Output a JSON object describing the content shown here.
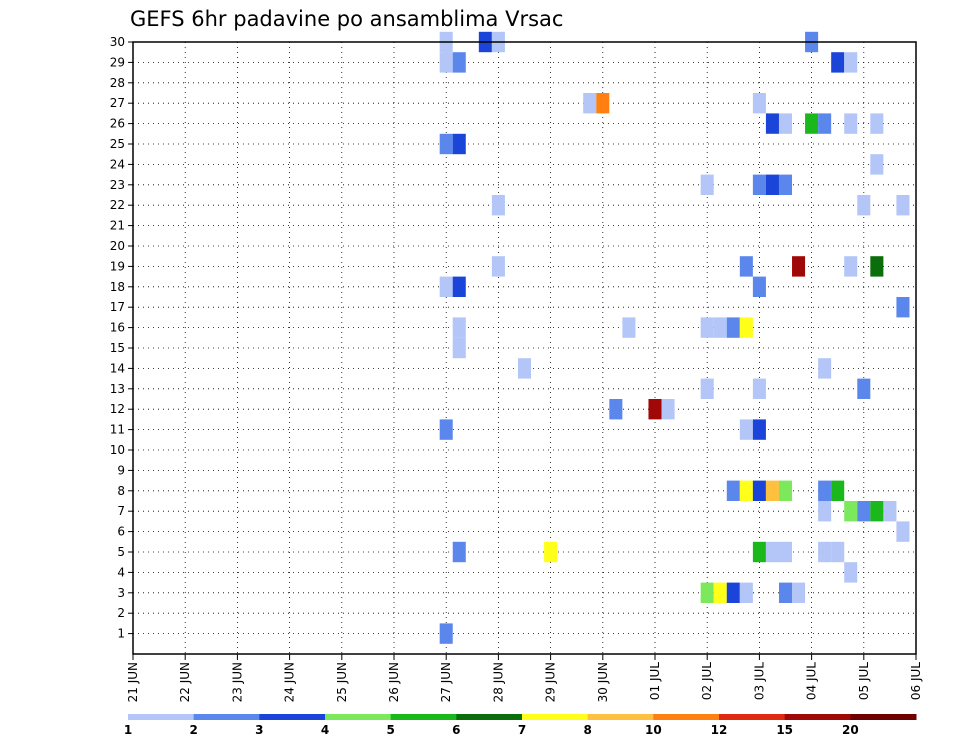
{
  "chart_data": {
    "type": "heatmap",
    "title": "GEFS 6hr padavine po ansamblima Vrsac",
    "xlabel": "",
    "ylabel": "",
    "x_tick_labels": [
      "21 JUN",
      "22 JUN",
      "23 JUN",
      "24 JUN",
      "25 JUN",
      "26 JUN",
      "27 JUN",
      "28 JUN",
      "29 JUN",
      "30 JUN",
      "01 JUL",
      "02 JUL",
      "03 JUL",
      "04 JUL",
      "05 JUL",
      "06 JUL"
    ],
    "x_range_steps": [
      0,
      60
    ],
    "y_tick_labels": [
      "1",
      "2",
      "3",
      "4",
      "5",
      "6",
      "7",
      "8",
      "9",
      "10",
      "11",
      "12",
      "13",
      "14",
      "15",
      "16",
      "17",
      "18",
      "19",
      "20",
      "21",
      "22",
      "23",
      "24",
      "25",
      "26",
      "27",
      "28",
      "29",
      "30"
    ],
    "y_range": [
      0,
      30
    ],
    "grid": true,
    "colorbar": {
      "bounds": [
        "1",
        "2",
        "3",
        "4",
        "5",
        "6",
        "7",
        "8",
        "10",
        "12",
        "15",
        "20"
      ],
      "colors": [
        "#b3c6f7",
        "#5b86ec",
        "#1a45d8",
        "#7ce85b",
        "#1ab81a",
        "#0a6e0a",
        "#ffff1a",
        "#ffc040",
        "#ff8010",
        "#e02a10",
        "#a00808",
        "#6e0000"
      ]
    },
    "note_time_unit": "6-hour steps after 21 JUN 00Z",
    "cells": [
      {
        "t": 24,
        "m": 30,
        "c": 0
      },
      {
        "t": 27,
        "m": 30,
        "c": 2
      },
      {
        "t": 28,
        "m": 30,
        "c": 0
      },
      {
        "t": 52,
        "m": 30,
        "c": 1
      },
      {
        "t": 24,
        "m": 29,
        "c": 0
      },
      {
        "t": 25,
        "m": 29,
        "c": 1
      },
      {
        "t": 54,
        "m": 29,
        "c": 2
      },
      {
        "t": 55,
        "m": 29,
        "c": 0
      },
      {
        "t": 35,
        "m": 27,
        "c": 0
      },
      {
        "t": 36,
        "m": 27,
        "c": 8
      },
      {
        "t": 48,
        "m": 27,
        "c": 0
      },
      {
        "t": 49,
        "m": 26,
        "c": 2
      },
      {
        "t": 50,
        "m": 26,
        "c": 0
      },
      {
        "t": 52,
        "m": 26,
        "c": 4
      },
      {
        "t": 53,
        "m": 26,
        "c": 1
      },
      {
        "t": 55,
        "m": 26,
        "c": 0
      },
      {
        "t": 57,
        "m": 26,
        "c": 0
      },
      {
        "t": 24,
        "m": 25,
        "c": 1
      },
      {
        "t": 25,
        "m": 25,
        "c": 2
      },
      {
        "t": 57,
        "m": 24,
        "c": 0
      },
      {
        "t": 44,
        "m": 23,
        "c": 0
      },
      {
        "t": 48,
        "m": 23,
        "c": 1
      },
      {
        "t": 49,
        "m": 23,
        "c": 2
      },
      {
        "t": 50,
        "m": 23,
        "c": 1
      },
      {
        "t": 28,
        "m": 22,
        "c": 0
      },
      {
        "t": 56,
        "m": 22,
        "c": 0
      },
      {
        "t": 59,
        "m": 22,
        "c": 0
      },
      {
        "t": 28,
        "m": 19,
        "c": 0
      },
      {
        "t": 47,
        "m": 19,
        "c": 1
      },
      {
        "t": 51,
        "m": 19,
        "c": 10
      },
      {
        "t": 55,
        "m": 19,
        "c": 0
      },
      {
        "t": 57,
        "m": 19,
        "c": 5
      },
      {
        "t": 24,
        "m": 18,
        "c": 0
      },
      {
        "t": 25,
        "m": 18,
        "c": 2
      },
      {
        "t": 48,
        "m": 18,
        "c": 1
      },
      {
        "t": 59,
        "m": 17,
        "c": 1
      },
      {
        "t": 25,
        "m": 16,
        "c": 0
      },
      {
        "t": 38,
        "m": 16,
        "c": 0
      },
      {
        "t": 44,
        "m": 16,
        "c": 0
      },
      {
        "t": 45,
        "m": 16,
        "c": 0
      },
      {
        "t": 46,
        "m": 16,
        "c": 1
      },
      {
        "t": 47,
        "m": 16,
        "c": 6
      },
      {
        "t": 25,
        "m": 15,
        "c": 0
      },
      {
        "t": 30,
        "m": 14,
        "c": 0
      },
      {
        "t": 53,
        "m": 14,
        "c": 0
      },
      {
        "t": 44,
        "m": 13,
        "c": 0
      },
      {
        "t": 48,
        "m": 13,
        "c": 0
      },
      {
        "t": 56,
        "m": 13,
        "c": 1
      },
      {
        "t": 37,
        "m": 12,
        "c": 1
      },
      {
        "t": 40,
        "m": 12,
        "c": 10
      },
      {
        "t": 41,
        "m": 12,
        "c": 0
      },
      {
        "t": 24,
        "m": 11,
        "c": 1
      },
      {
        "t": 47,
        "m": 11,
        "c": 0
      },
      {
        "t": 48,
        "m": 11,
        "c": 2
      },
      {
        "t": 46,
        "m": 8,
        "c": 1
      },
      {
        "t": 47,
        "m": 8,
        "c": 6
      },
      {
        "t": 48,
        "m": 8,
        "c": 2
      },
      {
        "t": 49,
        "m": 8,
        "c": 7
      },
      {
        "t": 50,
        "m": 8,
        "c": 3
      },
      {
        "t": 53,
        "m": 8,
        "c": 1
      },
      {
        "t": 54,
        "m": 8,
        "c": 4
      },
      {
        "t": 53,
        "m": 7,
        "c": 0
      },
      {
        "t": 55,
        "m": 7,
        "c": 3
      },
      {
        "t": 56,
        "m": 7,
        "c": 1
      },
      {
        "t": 57,
        "m": 7,
        "c": 4
      },
      {
        "t": 58,
        "m": 7,
        "c": 0
      },
      {
        "t": 59,
        "m": 6,
        "c": 0
      },
      {
        "t": 25,
        "m": 5,
        "c": 1
      },
      {
        "t": 32,
        "m": 5,
        "c": 6
      },
      {
        "t": 48,
        "m": 5,
        "c": 4
      },
      {
        "t": 49,
        "m": 5,
        "c": 0
      },
      {
        "t": 50,
        "m": 5,
        "c": 0
      },
      {
        "t": 53,
        "m": 5,
        "c": 0
      },
      {
        "t": 54,
        "m": 5,
        "c": 0
      },
      {
        "t": 55,
        "m": 4,
        "c": 0
      },
      {
        "t": 44,
        "m": 3,
        "c": 3
      },
      {
        "t": 45,
        "m": 3,
        "c": 6
      },
      {
        "t": 46,
        "m": 3,
        "c": 2
      },
      {
        "t": 47,
        "m": 3,
        "c": 0
      },
      {
        "t": 50,
        "m": 3,
        "c": 1
      },
      {
        "t": 51,
        "m": 3,
        "c": 0
      },
      {
        "t": 24,
        "m": 1,
        "c": 1
      }
    ]
  }
}
